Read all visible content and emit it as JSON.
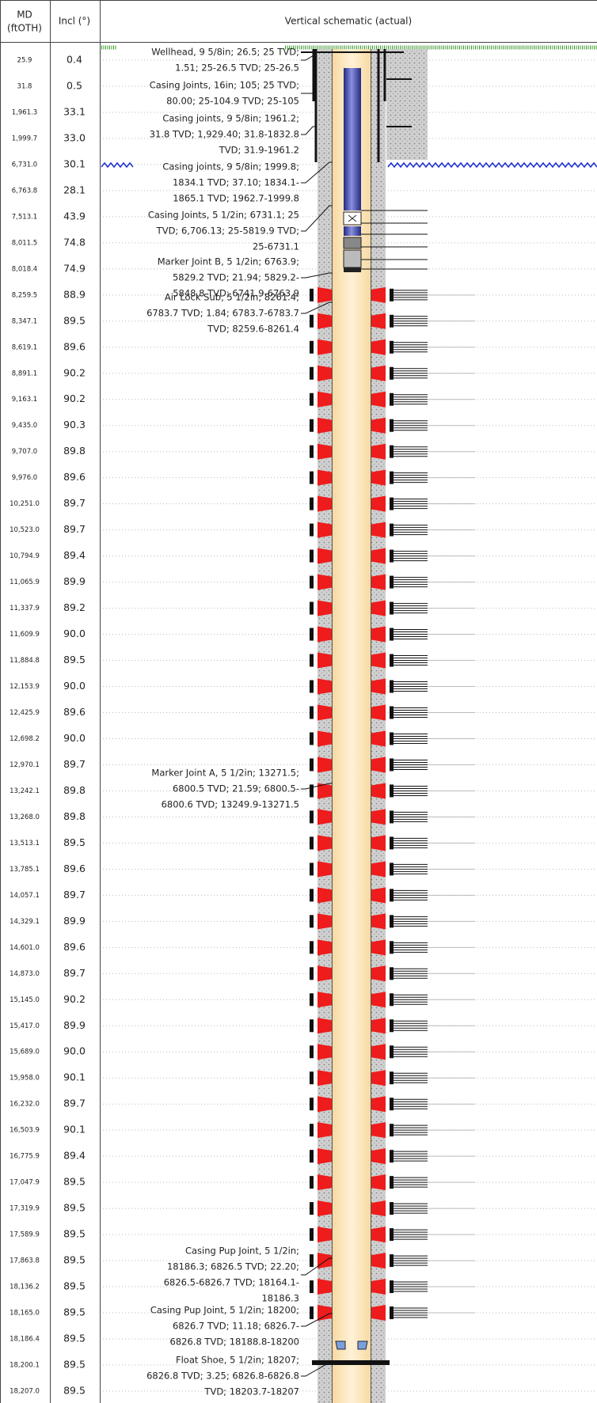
{
  "header": {
    "md_label": [
      "MD",
      "(ftOTH)"
    ],
    "incl_label": "Incl (°)",
    "schematic_title": "Vertical schematic (actual)"
  },
  "rows": [
    [
      "25.9",
      "0.4"
    ],
    [
      "31.8",
      "0.5"
    ],
    [
      "1,961.3",
      "33.1"
    ],
    [
      "1,999.7",
      "33.0"
    ],
    [
      "6,731.0",
      "30.1"
    ],
    [
      "6,763.8",
      "28.1"
    ],
    [
      "7,513.1",
      "43.9"
    ],
    [
      "8,011.5",
      "74.8"
    ],
    [
      "8,018.4",
      "74.9"
    ],
    [
      "8,259.5",
      "88.9"
    ],
    [
      "8,347.1",
      "89.5"
    ],
    [
      "8,619.1",
      "89.6"
    ],
    [
      "8,891.1",
      "90.2"
    ],
    [
      "9,163.1",
      "90.2"
    ],
    [
      "9,435.0",
      "90.3"
    ],
    [
      "9,707.0",
      "89.8"
    ],
    [
      "9,976.0",
      "89.6"
    ],
    [
      "10,251.0",
      "89.7"
    ],
    [
      "10,523.0",
      "89.7"
    ],
    [
      "10,794.9",
      "89.4"
    ],
    [
      "11,065.9",
      "89.9"
    ],
    [
      "11,337.9",
      "89.2"
    ],
    [
      "11,609.9",
      "90.0"
    ],
    [
      "11,884.8",
      "89.5"
    ],
    [
      "12,153.9",
      "90.0"
    ],
    [
      "12,425.9",
      "89.6"
    ],
    [
      "12,698.2",
      "90.0"
    ],
    [
      "12,970.1",
      "89.7"
    ],
    [
      "13,242.1",
      "89.8"
    ],
    [
      "13,268.0",
      "89.8"
    ],
    [
      "13,513.1",
      "89.5"
    ],
    [
      "13,785.1",
      "89.6"
    ],
    [
      "14,057.1",
      "89.7"
    ],
    [
      "14,329.1",
      "89.9"
    ],
    [
      "14,601.0",
      "89.6"
    ],
    [
      "14,873.0",
      "89.7"
    ],
    [
      "15,145.0",
      "90.2"
    ],
    [
      "15,417.0",
      "89.9"
    ],
    [
      "15,689.0",
      "90.0"
    ],
    [
      "15,958.0",
      "90.1"
    ],
    [
      "16,232.0",
      "89.7"
    ],
    [
      "16,503.9",
      "90.1"
    ],
    [
      "16,775.9",
      "89.4"
    ],
    [
      "17,047.9",
      "89.5"
    ],
    [
      "17,319.9",
      "89.5"
    ],
    [
      "17,589.9",
      "89.5"
    ],
    [
      "17,863.8",
      "89.5"
    ],
    [
      "18,136.2",
      "89.5"
    ],
    [
      "18,165.0",
      "89.5"
    ],
    [
      "18,186.4",
      "89.5"
    ],
    [
      "18,200.1",
      "89.5"
    ],
    [
      "18,207.0",
      "89.5"
    ]
  ],
  "annotations": [
    {
      "lines": [
        "Wellhead, 9 5/8in; 26.5; 25 TVD;",
        "1.51; 25-26.5 TVD; 25-26.5"
      ]
    },
    {
      "lines": [
        "Casing Joints, 16in; 105; 25 TVD;",
        "80.00; 25-104.9 TVD; 25-105"
      ]
    },
    {
      "lines": [
        "Casing joints, 9 5/8in; 1961.2;",
        "31.8 TVD; 1,929.40; 31.8-1832.8",
        "TVD; 31.9-1961.2"
      ]
    },
    {
      "lines": [
        "Casing joints, 9 5/8in; 1999.8;",
        "1834.1 TVD; 37.10; 1834.1-",
        "1865.1 TVD; 1962.7-1999.8"
      ]
    },
    {
      "lines": [
        "Casing Joints, 5 1/2in; 6731.1; 25",
        "TVD; 6,706.13; 25-5819.9 TVD;",
        "25-6731.1"
      ]
    },
    {
      "lines": [
        "Marker Joint B, 5 1/2in; 6763.9;",
        "5829.2 TVD; 21.94; 5829.2-",
        "5848.8 TVD; 6741.9-6763.9"
      ]
    },
    {
      "lines": [
        "Air Lock Sub, 5 1/2in; 8261.4;",
        "6783.7 TVD; 1.84; 6783.7-6783.7",
        "TVD; 8259.6-8261.4"
      ]
    },
    {
      "lines": [
        "Marker Joint A, 5 1/2in; 13271.5;",
        "6800.5 TVD; 21.59; 6800.5-",
        "6800.6 TVD; 13249.9-13271.5"
      ]
    },
    {
      "lines": [
        "Casing Pup Joint, 5 1/2in;",
        "18186.3; 6826.5 TVD; 22.20;",
        "6826.5-6826.7 TVD; 18164.1-",
        "18186.3"
      ]
    },
    {
      "lines": [
        "Casing Pup Joint, 5 1/2in; 18200;",
        "6826.7 TVD; 11.18; 6826.7-",
        "6826.8 TVD; 18188.8-18200"
      ]
    },
    {
      "lines": [
        "Float Shoe, 5 1/2in; 18207;",
        "6826.8 TVD; 3.25; 6826.8-6826.8",
        "TVD; 18203.7-18207"
      ]
    }
  ]
}
